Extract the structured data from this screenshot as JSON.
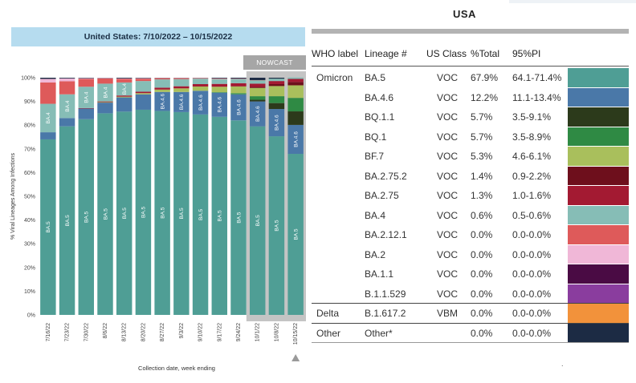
{
  "chart_data": {
    "type": "bar",
    "stacked": true,
    "title": "United States: 7/10/2022 – 10/15/2022",
    "xlabel": "Collection date, week ending",
    "ylabel": "% Viral Lineages Among Infections",
    "ylim": [
      0,
      100
    ],
    "yticks": [
      "0%",
      "10%",
      "20%",
      "30%",
      "40%",
      "50%",
      "60%",
      "70%",
      "80%",
      "90%",
      "100%"
    ],
    "nowcast_label": "NOWCAST",
    "nowcast_weeks": [
      "10/1/22",
      "10/8/22",
      "10/15/22"
    ],
    "categories": [
      "7/16/22",
      "7/23/22",
      "7/30/22",
      "8/6/22",
      "8/13/22",
      "8/20/22",
      "8/27/22",
      "9/3/22",
      "9/10/22",
      "9/17/22",
      "9/24/22",
      "10/1/22",
      "10/8/22",
      "10/15/22"
    ],
    "series": [
      {
        "name": "BA.5",
        "color": "#4f9e95",
        "values": [
          74,
          79.5,
          82.5,
          85,
          85.7,
          86.5,
          86,
          85.5,
          84.5,
          83.5,
          82,
          79.5,
          75.3,
          67.9
        ]
      },
      {
        "name": "BA.4.6",
        "color": "#4a78a8",
        "values": [
          3,
          3.5,
          4.5,
          4.5,
          6,
          6.5,
          8,
          8.5,
          10,
          10.2,
          11,
          10.5,
          11.5,
          12.2
        ]
      },
      {
        "name": "BQ.1.1",
        "color": "#2c3a1b",
        "values": [
          0,
          0,
          0,
          0,
          0,
          0,
          0,
          0,
          0,
          0,
          0,
          0.7,
          2.5,
          5.7
        ]
      },
      {
        "name": "BQ.1",
        "color": "#2f8a44",
        "values": [
          0,
          0,
          0,
          0,
          0,
          0,
          0,
          0,
          0,
          0.2,
          0.5,
          1.5,
          2.9,
          5.7
        ]
      },
      {
        "name": "BF.7",
        "color": "#a9bf5c",
        "values": [
          0,
          0,
          0,
          0.2,
          0.3,
          0.5,
          1,
          1.5,
          1.8,
          2.3,
          2.8,
          3.5,
          4.3,
          5.3
        ]
      },
      {
        "name": "BA.2.75.2",
        "color": "#6e0f1c",
        "values": [
          0,
          0,
          0,
          0,
          0,
          0,
          0,
          0,
          0,
          0,
          0.1,
          0.4,
          0.8,
          1.4
        ]
      },
      {
        "name": "BA.2.75",
        "color": "#a31a32",
        "values": [
          0,
          0,
          0.2,
          0.3,
          0.5,
          0.6,
          0.8,
          0.9,
          1,
          1.2,
          1.3,
          1.4,
          1.3,
          1.3
        ]
      },
      {
        "name": "BA.4",
        "color": "#86bdb6",
        "values": [
          12,
          10,
          9,
          7.5,
          5.5,
          4.5,
          3.5,
          3,
          2.3,
          2,
          1.7,
          1.4,
          1,
          0.6
        ]
      },
      {
        "name": "BA.2.12.1",
        "color": "#de5a5a",
        "values": [
          9,
          5.5,
          3.3,
          2.2,
          1.5,
          1,
          0.5,
          0.4,
          0.2,
          0.2,
          0.1,
          0.1,
          0,
          0
        ]
      },
      {
        "name": "BA.2",
        "color": "#f0b7d7",
        "values": [
          1.5,
          1.2,
          0.3,
          0.2,
          0.2,
          0.2,
          0.1,
          0.1,
          0.1,
          0.1,
          0.1,
          0,
          0,
          0
        ]
      },
      {
        "name": "BA.1.1",
        "color": "#4a0b44",
        "values": [
          0,
          0,
          0,
          0,
          0,
          0,
          0,
          0,
          0,
          0,
          0,
          0,
          0,
          0
        ]
      },
      {
        "name": "B.1.1.529",
        "color": "#8a3d9e",
        "values": [
          0,
          0,
          0,
          0,
          0,
          0,
          0,
          0,
          0,
          0,
          0,
          0,
          0,
          0
        ]
      },
      {
        "name": "B.1.617.2",
        "color": "#f2923b",
        "values": [
          0,
          0,
          0,
          0,
          0,
          0,
          0,
          0,
          0,
          0,
          0,
          0,
          0,
          0
        ]
      },
      {
        "name": "Other*",
        "color": "#1c2b44",
        "values": [
          0.5,
          0.3,
          0.2,
          0.1,
          0.3,
          0.2,
          0.1,
          0.1,
          0.1,
          0.3,
          0.4,
          1,
          0.4,
          0
        ]
      }
    ],
    "bar_labels": [
      {
        "series": "BA.5",
        "bars": [
          0,
          1,
          2,
          3,
          4,
          5,
          6,
          7,
          8,
          9,
          10,
          11,
          12,
          13
        ]
      },
      {
        "series": "BA.4",
        "bars": [
          0,
          1,
          2,
          3,
          4
        ]
      },
      {
        "series": "BA.4.6",
        "bars": [
          6,
          7,
          8,
          9,
          10,
          11,
          12,
          13
        ]
      }
    ]
  },
  "table": {
    "title": "USA",
    "headers": {
      "who_label": "WHO label",
      "lineage": "Lineage #",
      "us_class": "US Class",
      "pct_total": "%Total",
      "pi": "95%PI"
    },
    "groups": [
      {
        "label": "Omicron",
        "rows": [
          {
            "lineage": "BA.5",
            "class": "VOC",
            "pct": "67.9%",
            "pi": "64.1-71.4%",
            "color": "#4f9e95"
          },
          {
            "lineage": "BA.4.6",
            "class": "VOC",
            "pct": "12.2%",
            "pi": "11.1-13.4%",
            "color": "#4a78a8"
          },
          {
            "lineage": "BQ.1.1",
            "class": "VOC",
            "pct": "5.7%",
            "pi": "3.5-9.1%",
            "color": "#2c3a1b"
          },
          {
            "lineage": "BQ.1",
            "class": "VOC",
            "pct": "5.7%",
            "pi": "3.5-8.9%",
            "color": "#2f8a44"
          },
          {
            "lineage": "BF.7",
            "class": "VOC",
            "pct": "5.3%",
            "pi": "4.6-6.1%",
            "color": "#a9bf5c"
          },
          {
            "lineage": "BA.2.75.2",
            "class": "VOC",
            "pct": "1.4%",
            "pi": "0.9-2.2%",
            "color": "#6e0f1c"
          },
          {
            "lineage": "BA.2.75",
            "class": "VOC",
            "pct": "1.3%",
            "pi": "1.0-1.6%",
            "color": "#a31a32"
          },
          {
            "lineage": "BA.4",
            "class": "VOC",
            "pct": "0.6%",
            "pi": "0.5-0.6%",
            "color": "#86bdb6"
          },
          {
            "lineage": "BA.2.12.1",
            "class": "VOC",
            "pct": "0.0%",
            "pi": "0.0-0.0%",
            "color": "#de5a5a"
          },
          {
            "lineage": "BA.2",
            "class": "VOC",
            "pct": "0.0%",
            "pi": "0.0-0.0%",
            "color": "#f0b7d7"
          },
          {
            "lineage": "BA.1.1",
            "class": "VOC",
            "pct": "0.0%",
            "pi": "0.0-0.0%",
            "color": "#4a0b44"
          },
          {
            "lineage": "B.1.1.529",
            "class": "VOC",
            "pct": "0.0%",
            "pi": "0.0-0.0%",
            "color": "#8a3d9e"
          }
        ]
      },
      {
        "label": "Delta",
        "rows": [
          {
            "lineage": "B.1.617.2",
            "class": "VBM",
            "pct": "0.0%",
            "pi": "0.0-0.0%",
            "color": "#f2923b"
          }
        ]
      },
      {
        "label": "Other",
        "rows": [
          {
            "lineage": "Other*",
            "class": "",
            "pct": "0.0%",
            "pi": "0.0-0.0%",
            "color": "#1c2b44"
          }
        ]
      }
    ],
    "footnote": "."
  }
}
